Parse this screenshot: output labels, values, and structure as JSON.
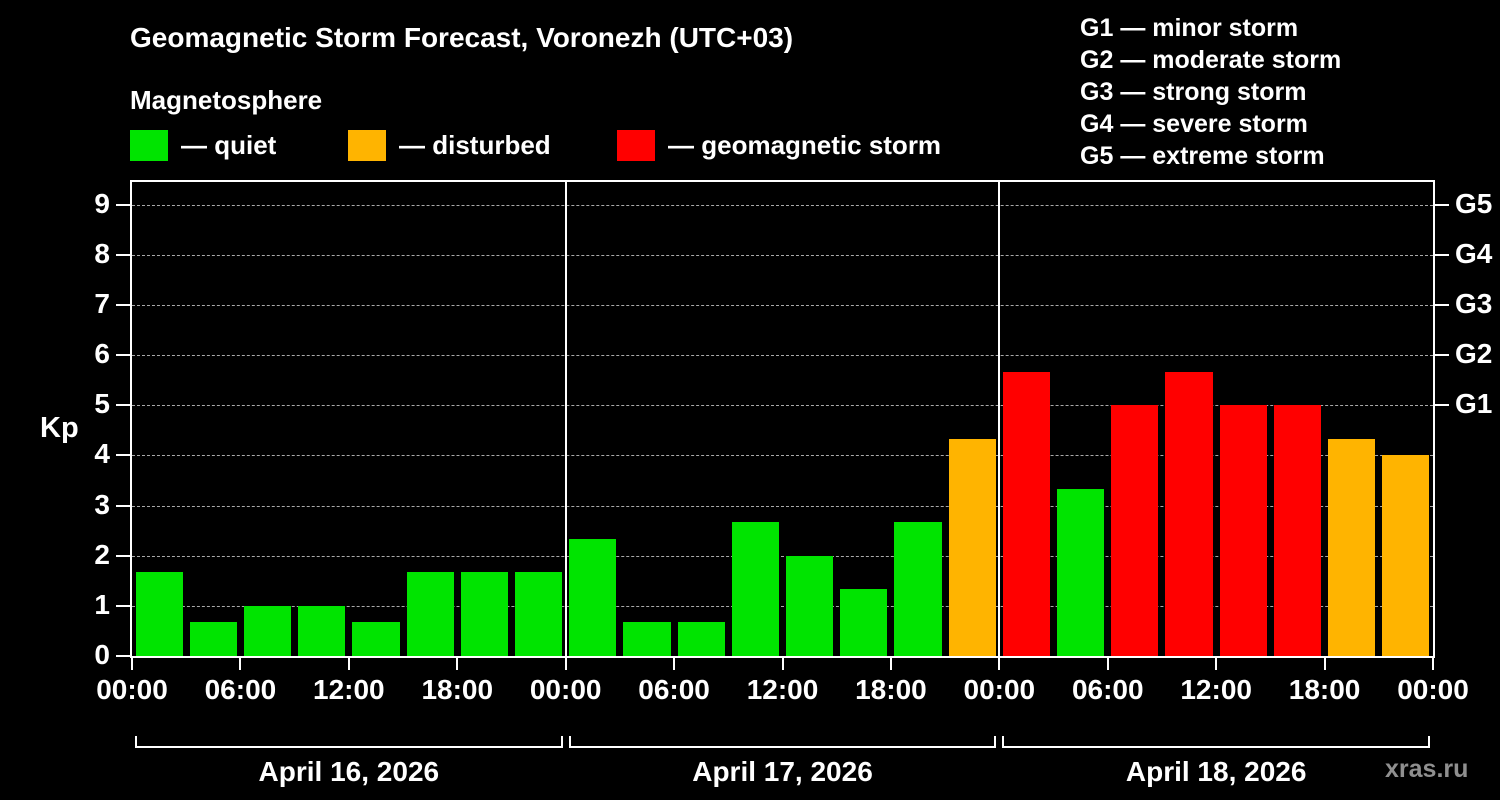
{
  "header": {
    "title": "Geomagnetic Storm Forecast, Voronezh (UTC+03)",
    "subtitle": "Magnetosphere"
  },
  "legend": {
    "items": [
      {
        "key": "quiet",
        "label": "— quiet",
        "color": "#00e400"
      },
      {
        "key": "disturbed",
        "label": "— disturbed",
        "color": "#ffb400"
      },
      {
        "key": "storm",
        "label": "— geomagnetic storm",
        "color": "#ff0000"
      }
    ]
  },
  "g_legend": [
    {
      "code": "G1",
      "label": "— minor storm"
    },
    {
      "code": "G2",
      "label": "— moderate storm"
    },
    {
      "code": "G3",
      "label": "— strong storm"
    },
    {
      "code": "G4",
      "label": "— severe storm"
    },
    {
      "code": "G5",
      "label": "— extreme storm"
    }
  ],
  "watermark": "xras.ru",
  "chart_data": {
    "type": "bar",
    "title": "Geomagnetic Storm Forecast, Voronezh (UTC+03)",
    "ylabel": "Kp",
    "ylim": [
      0,
      9.45
    ],
    "yticks": [
      0,
      1,
      2,
      3,
      4,
      5,
      6,
      7,
      8,
      9
    ],
    "grid": "dashed horizontal lines at integer Kp values",
    "right_axis": [
      {
        "label": "G1",
        "value": 5
      },
      {
        "label": "G2",
        "value": 6
      },
      {
        "label": "G3",
        "value": 7
      },
      {
        "label": "G4",
        "value": 8
      },
      {
        "label": "G5",
        "value": 9
      }
    ],
    "time_ticks": [
      "00:00",
      "06:00",
      "12:00",
      "18:00"
    ],
    "end_tick": "00:00",
    "bar_interval_hours": 3,
    "status_colors": {
      "quiet": "#00e400",
      "disturbed": "#ffb400",
      "storm": "#ff0000"
    },
    "days": [
      {
        "date": "April 16, 2026",
        "bars": [
          {
            "kp": 1.67,
            "status": "quiet"
          },
          {
            "kp": 0.67,
            "status": "quiet"
          },
          {
            "kp": 1.0,
            "status": "quiet"
          },
          {
            "kp": 1.0,
            "status": "quiet"
          },
          {
            "kp": 0.67,
            "status": "quiet"
          },
          {
            "kp": 1.67,
            "status": "quiet"
          },
          {
            "kp": 1.67,
            "status": "quiet"
          },
          {
            "kp": 1.67,
            "status": "quiet"
          }
        ]
      },
      {
        "date": "April 17, 2026",
        "bars": [
          {
            "kp": 2.33,
            "status": "quiet"
          },
          {
            "kp": 0.67,
            "status": "quiet"
          },
          {
            "kp": 0.67,
            "status": "quiet"
          },
          {
            "kp": 2.67,
            "status": "quiet"
          },
          {
            "kp": 2.0,
            "status": "quiet"
          },
          {
            "kp": 1.33,
            "status": "quiet"
          },
          {
            "kp": 2.67,
            "status": "quiet"
          },
          {
            "kp": 4.33,
            "status": "disturbed"
          }
        ]
      },
      {
        "date": "April 18, 2026",
        "bars": [
          {
            "kp": 5.67,
            "status": "storm"
          },
          {
            "kp": 3.33,
            "status": "quiet"
          },
          {
            "kp": 5.0,
            "status": "storm"
          },
          {
            "kp": 5.67,
            "status": "storm"
          },
          {
            "kp": 5.0,
            "status": "storm"
          },
          {
            "kp": 5.0,
            "status": "storm"
          },
          {
            "kp": 4.33,
            "status": "disturbed"
          },
          {
            "kp": 4.0,
            "status": "disturbed"
          }
        ]
      }
    ]
  }
}
